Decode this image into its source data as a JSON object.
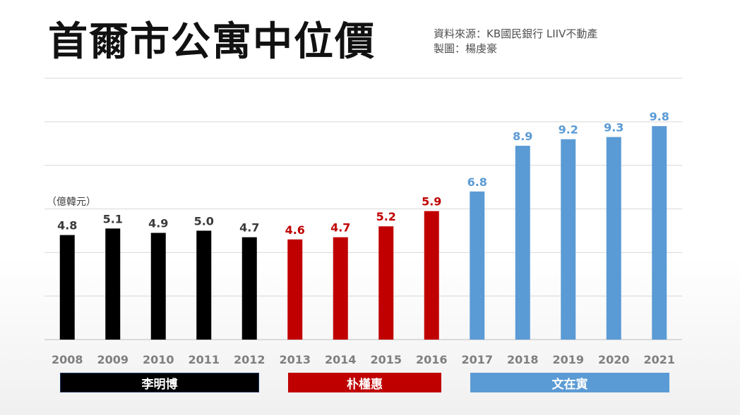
{
  "title": "首爾市公寓中位價",
  "source_lines": [
    "資料來源：KB國民銀行 LIIV不動產",
    "製圖：楊虔豪"
  ],
  "periods": [
    {
      "label": "李明博",
      "color": "#000000"
    },
    {
      "label": "朴槿惠",
      "color": "#c00000"
    },
    {
      "label": "文在寅",
      "color": "#5b9bd5"
    }
  ],
  "chart_data": {
    "type": "bar",
    "unit_label": "（億韓元）",
    "categories": [
      "2008",
      "2009",
      "2010",
      "2011",
      "2012",
      "2013",
      "2014",
      "2015",
      "2016",
      "2017",
      "2018",
      "2019",
      "2020",
      "2021"
    ],
    "values": [
      4.8,
      5.1,
      4.9,
      5.0,
      4.7,
      4.6,
      4.7,
      5.2,
      5.9,
      6.8,
      8.9,
      9.2,
      9.3,
      9.8
    ],
    "value_labels": [
      "4.8",
      "5.1",
      "4.9",
      "5.0",
      "4.7",
      "4.6",
      "4.7",
      "5.2",
      "5.9",
      "6.8",
      "8.9",
      "9.2",
      "9.3",
      "9.8"
    ],
    "series_colors": [
      "#000000",
      "#000000",
      "#000000",
      "#000000",
      "#000000",
      "#c00000",
      "#c00000",
      "#c00000",
      "#c00000",
      "#5b9bd5",
      "#5b9bd5",
      "#5b9bd5",
      "#5b9bd5",
      "#5b9bd5"
    ],
    "label_colors": [
      "#3a3a3a",
      "#3a3a3a",
      "#3a3a3a",
      "#3a3a3a",
      "#3a3a3a",
      "#c00000",
      "#c00000",
      "#c00000",
      "#c00000",
      "#5b9bd5",
      "#5b9bd5",
      "#5b9bd5",
      "#5b9bd5",
      "#5b9bd5"
    ],
    "ylim": [
      0,
      12
    ],
    "grid": true
  }
}
